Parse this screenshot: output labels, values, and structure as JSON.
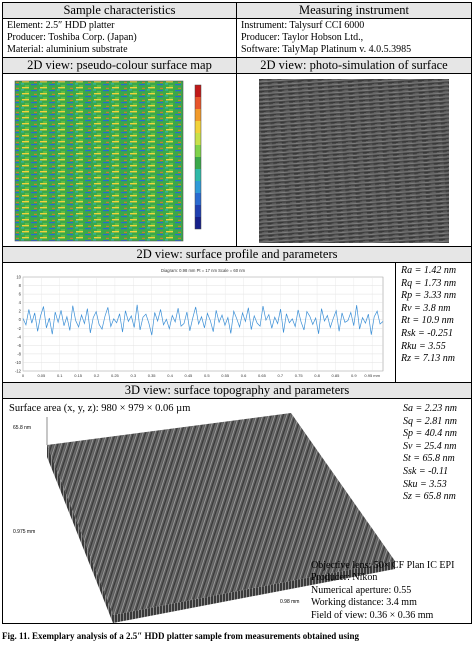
{
  "sample": {
    "header": "Sample characteristics",
    "element": "Element: 2.5″ HDD platter",
    "producer": "Producer: Toshiba Corp. (Japan)",
    "material": "Material: aluminium substrate"
  },
  "instrument": {
    "header": "Measuring instrument",
    "name": "Instrument: Talysurf CCI 6000",
    "producer": "Producer: Taylor Hobson Ltd.,",
    "software": "Software: TalyMap Platinum v. 4.0.5.3985"
  },
  "view_2d_map": {
    "header": "2D view: pseudo-colour surface map"
  },
  "view_2d_photo": {
    "header": "2D view: photo-simulation of surface"
  },
  "profile": {
    "header": "2D view: surface profile and parameters",
    "chart_title": "Diagram: 0.98 mm   Pt = 17 nm   Scale = 60 nm",
    "params": [
      {
        "name": "Ra",
        "value": "= 1.42 nm"
      },
      {
        "name": "Rq",
        "value": "= 1.73 nm"
      },
      {
        "name": "Rp",
        "value": "= 3.33 nm"
      },
      {
        "name": "Rv",
        "value": "= 3.8 nm"
      },
      {
        "name": "Rt",
        "value": "= 10.9 nm"
      },
      {
        "name": "Rsk",
        "value": "= -0.251"
      },
      {
        "name": "Rku",
        "value": "= 3.55"
      },
      {
        "name": "Rz",
        "value": "= 7.13 nm"
      }
    ]
  },
  "topography": {
    "header": "3D view: surface topography and parameters",
    "area_label": "Surface area (x, y, z): 980 × 979 × 0.06 µm",
    "z_label": "65.8 nm",
    "y_label": "0.975 mm",
    "x_label": "0.98 mm",
    "params": [
      {
        "name": "Sa",
        "value": "= 2.23 nm"
      },
      {
        "name": "Sq",
        "value": "= 2.81 nm"
      },
      {
        "name": "Sp",
        "value": "= 40.4 nm"
      },
      {
        "name": "Sv",
        "value": "= 25.4 nm"
      },
      {
        "name": "St",
        "value": "= 65.8 nm"
      },
      {
        "name": "Ssk",
        "value": "= -0.11"
      },
      {
        "name": "Sku",
        "value": "= 3.53"
      },
      {
        "name": "Sz",
        "value": "= 65.8 nm"
      }
    ],
    "objective": {
      "lens": "Objective lens: 50× CF Plan IC EPI",
      "producer": "Producer: Nikon",
      "aperture": "Numerical aperture: 0.55",
      "distance": "Working distance: 3.4 mm",
      "fov": "Field of view: 0.36 × 0.36 mm"
    }
  },
  "caption": "Fig. 11. Exemplary analysis of a 2.5″ HDD platter sample from measurements obtained using",
  "colors": {
    "header_bg": "#e6e6e6",
    "map_bg": "#3aa84a",
    "profile_line": "#3b8fd6"
  },
  "chart_data": {
    "type": "line",
    "title": "Diagram: 0.98 mm   Pt = 17 nm   Scale = 60 nm",
    "xlabel": "",
    "ylabel": "",
    "ylim": [
      -12,
      10
    ],
    "xlim": [
      0,
      0.98
    ],
    "y_ticks": [
      "10",
      "8",
      "6",
      "4",
      "2",
      "0",
      "-2",
      "-4",
      "-6",
      "-8",
      "-10",
      "-12"
    ],
    "x_ticks": [
      "0",
      "0.05",
      "0.1",
      "0.15",
      "0.2",
      "0.25",
      "0.3",
      "0.35",
      "0.4",
      "0.45",
      "0.5",
      "0.55",
      "0.6",
      "0.65",
      "0.7",
      "0.75",
      "0.8",
      "0.85",
      "0.9",
      "0.95 mm"
    ],
    "series": [
      {
        "values": [
          0.3,
          -1.2,
          2.4,
          -0.8,
          1.6,
          -2.7,
          0.9,
          3.1,
          -1.9,
          0.4,
          -3.4,
          1.8,
          -0.6,
          2.2,
          -1.4,
          0.7,
          -2.5,
          3.3,
          -0.2,
          -1.7,
          1.1,
          -0.9,
          2.6,
          -3.1,
          0.5,
          1.9,
          -1.1,
          -2.2,
          0.8,
          2.9,
          -1.6,
          0.2,
          -0.7,
          1.4,
          -2.9,
          2.1,
          -0.4,
          0.9,
          -1.8,
          3.5,
          -2.4,
          0.6,
          1.3,
          -0.8,
          -3.6,
          1.7,
          -0.3,
          2.4,
          -1.2,
          0.1,
          -2.1,
          1.0,
          -0.5,
          2.7,
          -1.5,
          -0.9,
          1.8,
          -2.6,
          0.4,
          3.0,
          -1.0,
          0.7,
          -1.9,
          1.5,
          -0.2,
          -2.8,
          2.2,
          -0.6,
          1.1,
          -1.3,
          0.5,
          -3.2,
          2.0,
          0.3,
          -1.7,
          1.6,
          -0.4,
          2.8,
          -2.3,
          0.9,
          -0.8,
          -1.5,
          3.2,
          -0.1,
          1.2,
          -2.0,
          0.6,
          -0.9,
          2.5,
          -3.0,
          1.4,
          -0.7,
          0.2,
          -1.6,
          2.3,
          -0.5,
          -2.4,
          1.9,
          0.8,
          -1.1,
          0.4,
          -3.3,
          2.6,
          -0.3,
          1.0,
          -1.8,
          0.3,
          2.1,
          -2.7,
          1.6,
          -0.6,
          -0.2,
          1.7,
          -1.4,
          3.4,
          -2.2,
          0.5,
          -0.8,
          1.3,
          -3.5,
          0.7,
          2.0,
          -1.0,
          -0.4
        ]
      }
    ]
  }
}
